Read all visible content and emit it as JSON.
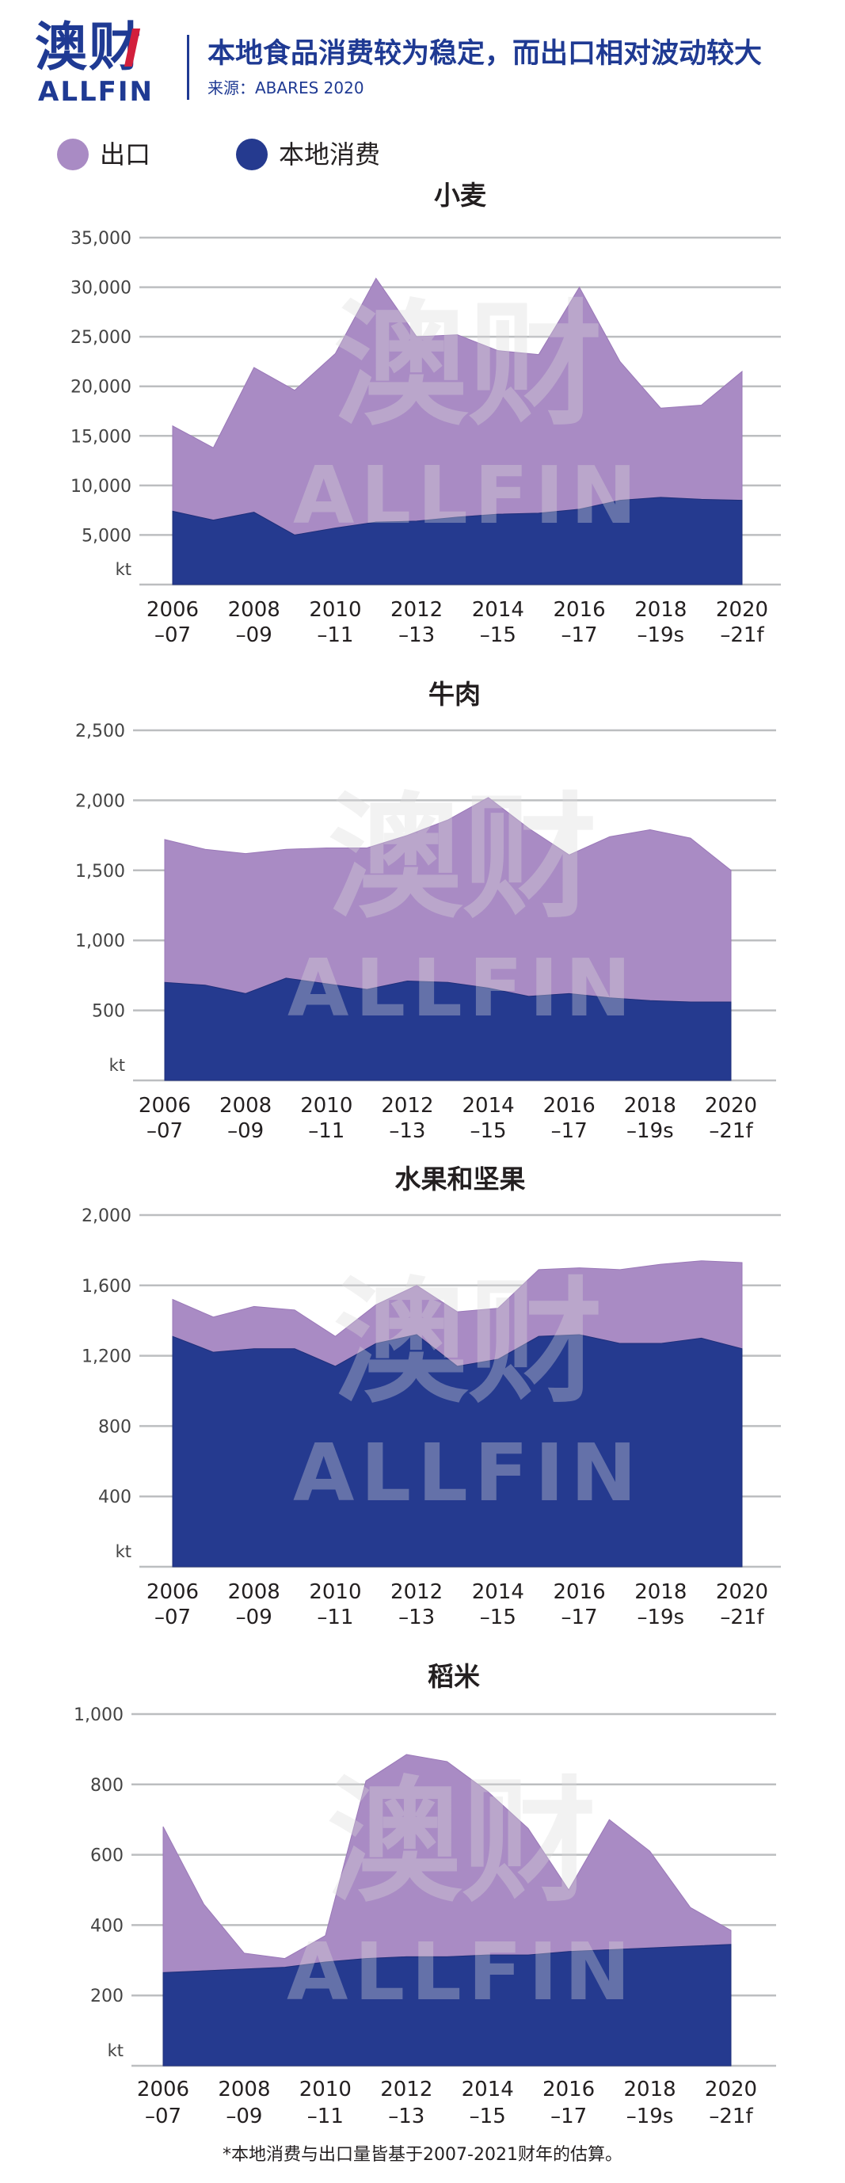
{
  "header": {
    "logo_cn": "澳财",
    "logo_en": "ALLFIN",
    "title": "本地食品消费较为稳定，而出口相对波动较大",
    "source": "来源：ABARES 2020"
  },
  "legend": [
    {
      "label": "出口",
      "color": "#a98bc4"
    },
    {
      "label": "本地消费",
      "color": "#253a8f"
    }
  ],
  "colors": {
    "export": "#a98bc4",
    "local": "#253a8f",
    "grid": "#bcbec0",
    "watermark": "#d9d9d9"
  },
  "watermark": {
    "cn": "澳财",
    "en": "ALLFIN"
  },
  "chart_data": [
    {
      "type": "area",
      "stacked": true,
      "title": "小麦",
      "unit_label": "kt",
      "x_tick_labels": [
        [
          "2006",
          "–07"
        ],
        [
          "2008",
          "–09"
        ],
        [
          "2010",
          "–11"
        ],
        [
          "2012",
          "–13"
        ],
        [
          "2014",
          "–15"
        ],
        [
          "2016",
          "–17"
        ],
        [
          "2018",
          "–19s"
        ],
        [
          "2020",
          "–21f"
        ]
      ],
      "y_ticks": [
        "5,000",
        "10,000",
        "15,000",
        "20,000",
        "25,000",
        "30,000",
        "35,000"
      ],
      "y_tick_values": [
        5000,
        10000,
        15000,
        20000,
        25000,
        30000,
        35000
      ],
      "ylim": [
        0,
        35000
      ],
      "x": [
        "2006–07",
        "2007–08",
        "2008–09",
        "2009–10",
        "2010–11",
        "2011–12",
        "2012–13",
        "2013–14",
        "2014–15",
        "2015–16",
        "2016–17",
        "2017–18",
        "2018–19",
        "2019–20",
        "2020–21"
      ],
      "series": [
        {
          "name": "本地消费",
          "values": [
            7400,
            6500,
            7300,
            5000,
            5700,
            6300,
            6400,
            6800,
            7100,
            7200,
            7600,
            8500,
            8800,
            8600,
            8500
          ]
        },
        {
          "name": "出口",
          "values": [
            8600,
            7300,
            14600,
            14600,
            17600,
            24600,
            18600,
            18400,
            16500,
            16000,
            22400,
            14000,
            9000,
            9500,
            13000
          ]
        }
      ]
    },
    {
      "type": "area",
      "stacked": true,
      "title": "牛肉",
      "unit_label": "kt",
      "x_tick_labels": [
        [
          "2006",
          "–07"
        ],
        [
          "2008",
          "–09"
        ],
        [
          "2010",
          "–11"
        ],
        [
          "2012",
          "–13"
        ],
        [
          "2014",
          "–15"
        ],
        [
          "2016",
          "–17"
        ],
        [
          "2018",
          "–19s"
        ],
        [
          "2020",
          "–21f"
        ]
      ],
      "y_ticks": [
        "500",
        "1,000",
        "1,500",
        "2,000",
        "2,500"
      ],
      "y_tick_values": [
        500,
        1000,
        1500,
        2000,
        2500
      ],
      "ylim": [
        0,
        2500
      ],
      "x": [
        "2006–07",
        "2007–08",
        "2008–09",
        "2009–10",
        "2010–11",
        "2011–12",
        "2012–13",
        "2013–14",
        "2014–15",
        "2015–16",
        "2016–17",
        "2017–18",
        "2018–19",
        "2019–20",
        "2020–21"
      ],
      "series": [
        {
          "name": "本地消费",
          "values": [
            700,
            680,
            620,
            730,
            690,
            650,
            710,
            700,
            660,
            600,
            620,
            590,
            570,
            560,
            560
          ]
        },
        {
          "name": "出口",
          "values": [
            1020,
            970,
            1000,
            920,
            970,
            1010,
            1040,
            1160,
            1360,
            1200,
            990,
            1150,
            1220,
            1170,
            940
          ]
        }
      ]
    },
    {
      "type": "area",
      "stacked": true,
      "title": "水果和坚果",
      "unit_label": "kt",
      "x_tick_labels": [
        [
          "2006",
          "–07"
        ],
        [
          "2008",
          "–09"
        ],
        [
          "2010",
          "–11"
        ],
        [
          "2012",
          "–13"
        ],
        [
          "2014",
          "–15"
        ],
        [
          "2016",
          "–17"
        ],
        [
          "2018",
          "–19s"
        ],
        [
          "2020",
          "–21f"
        ]
      ],
      "y_ticks": [
        "400",
        "800",
        "1,200",
        "1,600",
        "2,000"
      ],
      "y_tick_values": [
        400,
        800,
        1200,
        1600,
        2000
      ],
      "ylim": [
        0,
        2000
      ],
      "x": [
        "2006–07",
        "2007–08",
        "2008–09",
        "2009–10",
        "2010–11",
        "2011–12",
        "2012–13",
        "2013–14",
        "2014–15",
        "2015–16",
        "2016–17",
        "2017–18",
        "2018–19",
        "2019–20",
        "2020–21"
      ],
      "series": [
        {
          "name": "本地消费",
          "values": [
            1310,
            1220,
            1240,
            1240,
            1140,
            1270,
            1320,
            1140,
            1180,
            1310,
            1320,
            1270,
            1270,
            1300,
            1240
          ]
        },
        {
          "name": "出口",
          "values": [
            210,
            200,
            240,
            220,
            170,
            220,
            280,
            310,
            290,
            380,
            380,
            420,
            450,
            440,
            490
          ]
        }
      ]
    },
    {
      "type": "area",
      "stacked": true,
      "title": "稻米",
      "unit_label": "kt",
      "x_tick_labels": [
        [
          "2006",
          "–07"
        ],
        [
          "2008",
          "–09"
        ],
        [
          "2010",
          "–11"
        ],
        [
          "2012",
          "–13"
        ],
        [
          "2014",
          "–15"
        ],
        [
          "2016",
          "–17"
        ],
        [
          "2018",
          "–19s"
        ],
        [
          "2020",
          "–21f"
        ]
      ],
      "y_ticks": [
        "200",
        "400",
        "600",
        "800",
        "1,000"
      ],
      "y_tick_values": [
        200,
        400,
        600,
        800,
        1000
      ],
      "ylim": [
        0,
        1000
      ],
      "x": [
        "2006–07",
        "2007–08",
        "2008–09",
        "2009–10",
        "2010–11",
        "2011–12",
        "2012–13",
        "2013–14",
        "2014–15",
        "2015–16",
        "2016–17",
        "2017–18",
        "2018–19",
        "2019–20",
        "2020–21"
      ],
      "series": [
        {
          "name": "本地消费",
          "values": [
            265,
            270,
            275,
            280,
            295,
            305,
            310,
            310,
            315,
            315,
            325,
            330,
            335,
            340,
            345
          ]
        },
        {
          "name": "出口",
          "values": [
            415,
            190,
            45,
            25,
            75,
            505,
            575,
            555,
            465,
            360,
            175,
            370,
            275,
            110,
            40
          ]
        }
      ]
    }
  ],
  "footnote": "*本地消费与出口量皆基于2007-2021财年的估算。"
}
